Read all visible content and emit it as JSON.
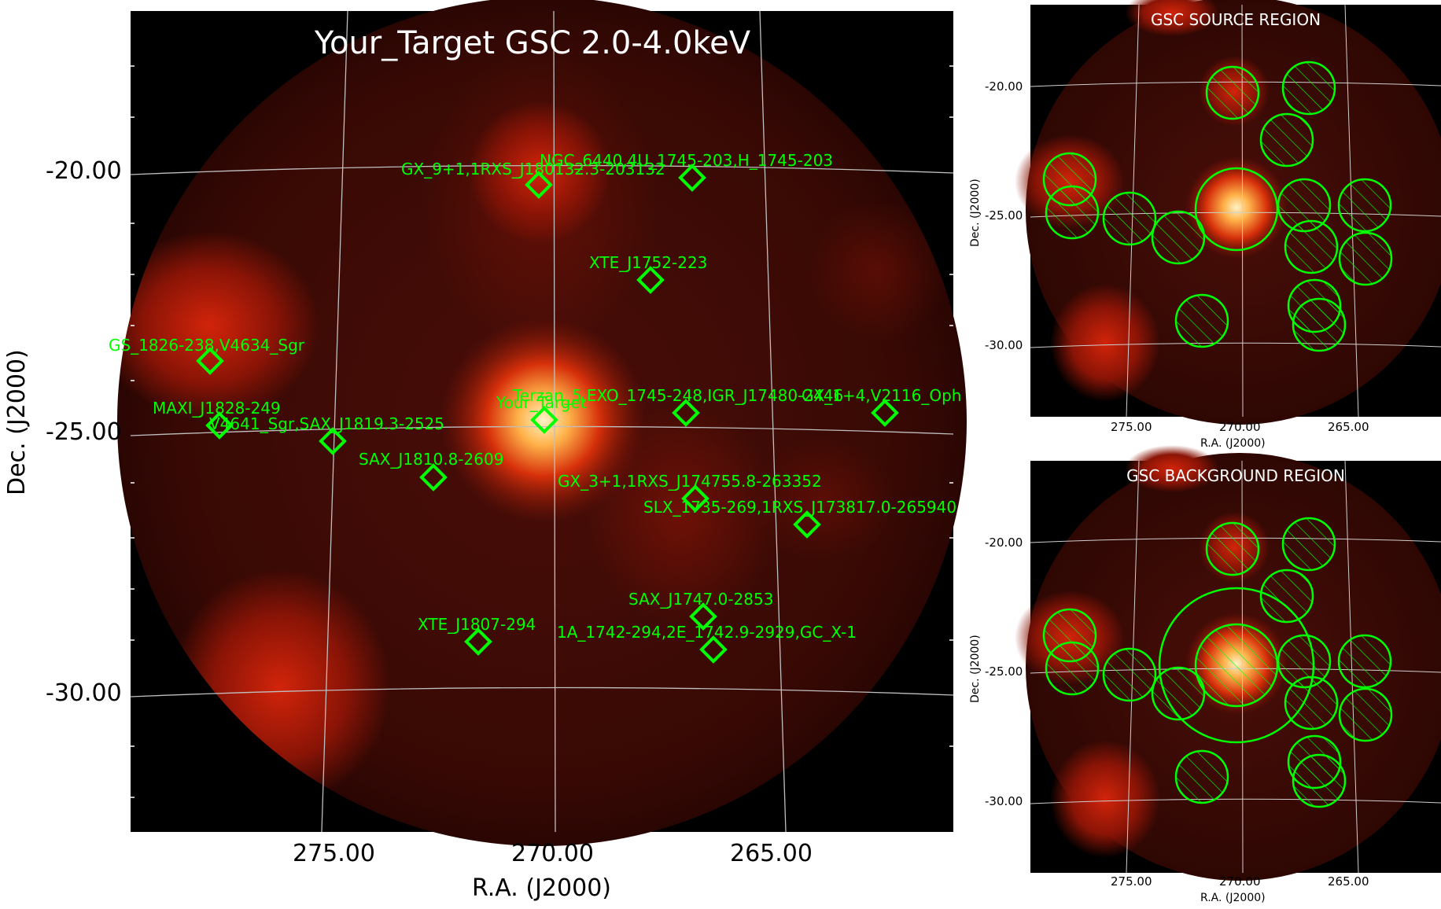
{
  "main": {
    "title": "Your_Target GSC 2.0-4.0keV",
    "xlabel": "R.A. (J2000)",
    "ylabel": "Dec. (J2000)",
    "x_ticks": [
      "275.00",
      "270.00",
      "265.00"
    ],
    "y_ticks": [
      "-20.00",
      "-25.00",
      "-30.00"
    ],
    "sources": [
      "GX_9+1,1RXS_J180132.3-203132",
      "NGC_6440,4U_1745-203,H_1745-203",
      "XTE_J1752-223",
      "GS_1826-238,V4634_Sgr",
      "MAXI_J1828-249",
      "V4641_Sgr,SAX_J1819.3-2525",
      "Your_Target",
      "Terzan_5,EXO_1745-248,IGR_J17480-2446",
      "GX_1+4,V2116_Oph",
      "SAX_J1810.8-2609",
      "GX_3+1,1RXS_J174755.8-263352",
      "SLX_1735-269,1RXS_J173817.0-265940",
      "SAX_J1747.0-2853",
      "XTE_J1807-294",
      "1A_1742-294,2E_1742.9-2929,GC_X-1"
    ]
  },
  "source_region": {
    "title": "GSC SOURCE REGION",
    "xlabel": "R.A. (J2000)",
    "ylabel": "Dec. (J2000)",
    "x_ticks": [
      "275.00",
      "270.00",
      "265.00"
    ],
    "y_ticks": [
      "-20.00",
      "-25.00",
      "-30.00"
    ]
  },
  "background_region": {
    "title": "GSC BACKGROUND REGION",
    "xlabel": "R.A. (J2000)",
    "ylabel": "Dec. (J2000)",
    "x_ticks": [
      "275.00",
      "270.00",
      "265.00"
    ],
    "y_ticks": [
      "-20.00",
      "-25.00",
      "-30.00"
    ]
  },
  "colors": {
    "marker": "#00ff00",
    "grid": "#bfbfbf",
    "background": "#000000",
    "field_dark": "#3a0a06",
    "field_red": "#b01a08",
    "field_bright": "#ffe9b0"
  }
}
